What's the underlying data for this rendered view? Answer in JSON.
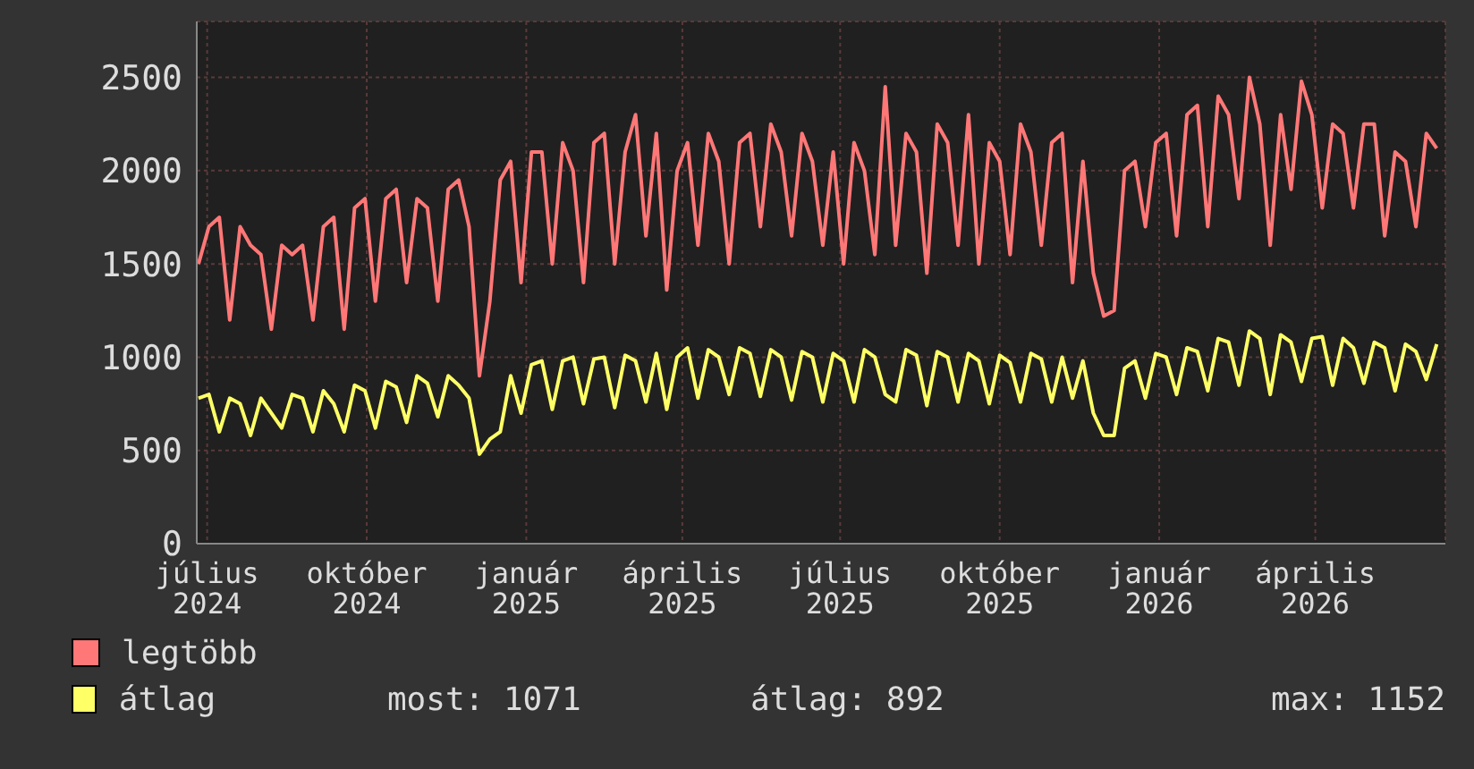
{
  "chart_data": {
    "type": "line",
    "legend": "bottom left",
    "grid": true,
    "marker": "none",
    "x": [
      "2024-06-26",
      "2024-07-02",
      "2024-07-08",
      "2024-07-14",
      "2024-07-20",
      "2024-07-26",
      "2024-08-01",
      "2024-08-07",
      "2024-08-13",
      "2024-08-19",
      "2024-08-25",
      "2024-08-31",
      "2024-09-06",
      "2024-09-12",
      "2024-09-18",
      "2024-09-24",
      "2024-09-30",
      "2024-10-06",
      "2024-10-12",
      "2024-10-18",
      "2024-10-24",
      "2024-10-30",
      "2024-11-05",
      "2024-11-11",
      "2024-11-17",
      "2024-11-23",
      "2024-11-29",
      "2024-12-05",
      "2024-12-11",
      "2024-12-17",
      "2024-12-23",
      "2024-12-29",
      "2025-01-04",
      "2025-01-10",
      "2025-01-16",
      "2025-01-22",
      "2025-01-28",
      "2025-02-03",
      "2025-02-09",
      "2025-02-15",
      "2025-02-21",
      "2025-02-27",
      "2025-03-05",
      "2025-03-11",
      "2025-03-17",
      "2025-03-23",
      "2025-03-29",
      "2025-04-04",
      "2025-04-10",
      "2025-04-16",
      "2025-04-22",
      "2025-04-28",
      "2025-05-04",
      "2025-05-10",
      "2025-05-16",
      "2025-05-22",
      "2025-05-28",
      "2025-06-03",
      "2025-06-09",
      "2025-06-15",
      "2025-06-21",
      "2025-06-27",
      "2025-07-03",
      "2025-07-09",
      "2025-07-15",
      "2025-07-21",
      "2025-07-27",
      "2025-08-02",
      "2025-08-08",
      "2025-08-14",
      "2025-08-20",
      "2025-08-26",
      "2025-09-01",
      "2025-09-07",
      "2025-09-13",
      "2025-09-19",
      "2025-09-25",
      "2025-10-01",
      "2025-10-07",
      "2025-10-13",
      "2025-10-19",
      "2025-10-25",
      "2025-10-31",
      "2025-11-06",
      "2025-11-12",
      "2025-11-18",
      "2025-11-24",
      "2025-11-30",
      "2025-12-06",
      "2025-12-12",
      "2025-12-18",
      "2025-12-24",
      "2025-12-30",
      "2026-01-05",
      "2026-01-11",
      "2026-01-17",
      "2026-01-23",
      "2026-01-29",
      "2026-02-04",
      "2026-02-10",
      "2026-02-16",
      "2026-02-22",
      "2026-02-28",
      "2026-03-06",
      "2026-03-12",
      "2026-03-18",
      "2026-03-24",
      "2026-03-30",
      "2026-04-05",
      "2026-04-11",
      "2026-04-17",
      "2026-04-23",
      "2026-04-29",
      "2026-05-05",
      "2026-05-11",
      "2026-05-17",
      "2026-05-23",
      "2026-05-29",
      "2026-06-04",
      "2026-06-10"
    ],
    "xlim": [
      "2024-06-25",
      "2026-06-15"
    ],
    "xticks": [
      {
        "value": "2024-07-01",
        "label": "július 2024"
      },
      {
        "value": "2024-10-01",
        "label": "október 2024"
      },
      {
        "value": "2025-01-01",
        "label": "január 2025"
      },
      {
        "value": "2025-04-01",
        "label": "április 2025"
      },
      {
        "value": "2025-07-01",
        "label": "július 2025"
      },
      {
        "value": "2025-10-01",
        "label": "október 2025"
      },
      {
        "value": "2026-01-01",
        "label": "január 2026"
      },
      {
        "value": "2026-04-01",
        "label": "április 2026"
      }
    ],
    "ylim": [
      0,
      2800
    ],
    "yticks": [
      0,
      500,
      1000,
      1500,
      2000,
      2500
    ],
    "series": [
      {
        "name": "legtöbb",
        "color": "#ff7777",
        "values": [
          1500,
          1700,
          1750,
          1200,
          1700,
          1600,
          1550,
          1150,
          1600,
          1550,
          1600,
          1200,
          1700,
          1750,
          1150,
          1800,
          1850,
          1300,
          1850,
          1900,
          1400,
          1850,
          1800,
          1300,
          1900,
          1950,
          1700,
          900,
          1300,
          1950,
          2050,
          1400,
          2100,
          2100,
          1500,
          2150,
          2000,
          1400,
          2150,
          2200,
          1500,
          2100,
          2300,
          1650,
          2200,
          1360,
          2000,
          2150,
          1600,
          2200,
          2050,
          1500,
          2150,
          2200,
          1700,
          2250,
          2100,
          1650,
          2200,
          2050,
          1600,
          2100,
          1500,
          2150,
          2000,
          1550,
          2450,
          1600,
          2200,
          2100,
          1450,
          2250,
          2150,
          1600,
          2300,
          1500,
          2150,
          2050,
          1550,
          2250,
          2100,
          1600,
          2150,
          2200,
          1400,
          2050,
          1450,
          1220,
          1250,
          2000,
          2050,
          1700,
          2150,
          2200,
          1650,
          2300,
          2350,
          1700,
          2400,
          2300,
          1850,
          2500,
          2250,
          1600,
          2300,
          1900,
          2480,
          2300,
          1800,
          2250,
          2200,
          1800,
          2250,
          2250,
          1650,
          2100,
          2050,
          1700,
          2200,
          2120
        ]
      },
      {
        "name": "átlag",
        "color": "#ffff66",
        "values": [
          780,
          800,
          600,
          780,
          750,
          580,
          780,
          700,
          620,
          800,
          780,
          600,
          820,
          750,
          600,
          850,
          820,
          620,
          870,
          840,
          650,
          900,
          860,
          680,
          900,
          850,
          780,
          480,
          560,
          600,
          900,
          700,
          960,
          980,
          720,
          980,
          1000,
          750,
          990,
          1000,
          730,
          1010,
          980,
          760,
          1020,
          720,
          1000,
          1050,
          780,
          1040,
          1000,
          800,
          1050,
          1020,
          790,
          1040,
          1000,
          770,
          1030,
          1000,
          760,
          1020,
          980,
          760,
          1040,
          1000,
          800,
          760,
          1040,
          1010,
          740,
          1030,
          1000,
          760,
          1020,
          980,
          750,
          1010,
          970,
          760,
          1020,
          990,
          760,
          1000,
          780,
          980,
          700,
          580,
          580,
          940,
          980,
          780,
          1020,
          1000,
          800,
          1050,
          1030,
          820,
          1100,
          1080,
          850,
          1140,
          1100,
          800,
          1120,
          1080,
          870,
          1100,
          1110,
          850,
          1100,
          1050,
          860,
          1080,
          1050,
          820,
          1070,
          1030,
          880,
          1070
        ]
      }
    ],
    "annotations": [
      "most: 1071",
      "átlag: 892",
      "max: 1152"
    ]
  }
}
